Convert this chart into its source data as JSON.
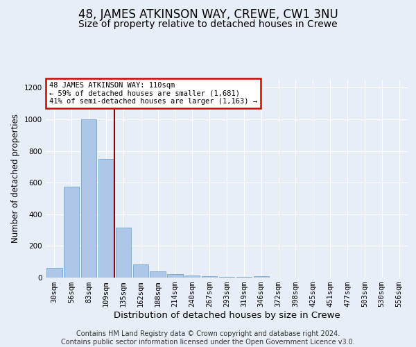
{
  "title1": "48, JAMES ATKINSON WAY, CREWE, CW1 3NU",
  "title2": "Size of property relative to detached houses in Crewe",
  "xlabel": "Distribution of detached houses by size in Crewe",
  "ylabel": "Number of detached properties",
  "bar_labels": [
    "30sqm",
    "56sqm",
    "83sqm",
    "109sqm",
    "135sqm",
    "162sqm",
    "188sqm",
    "214sqm",
    "240sqm",
    "267sqm",
    "293sqm",
    "319sqm",
    "346sqm",
    "372sqm",
    "398sqm",
    "425sqm",
    "451sqm",
    "477sqm",
    "503sqm",
    "530sqm",
    "556sqm"
  ],
  "bar_values": [
    60,
    575,
    1000,
    750,
    315,
    85,
    40,
    22,
    15,
    8,
    5,
    3,
    10,
    0,
    0,
    0,
    0,
    0,
    0,
    0,
    0
  ],
  "bar_color": "#aec6e8",
  "bar_edge_color": "#7aafd4",
  "property_line_color": "#8b0000",
  "annotation_text": "48 JAMES ATKINSON WAY: 110sqm\n← 59% of detached houses are smaller (1,681)\n41% of semi-detached houses are larger (1,163) →",
  "annotation_box_color": "#ffffff",
  "annotation_box_edge": "#cc0000",
  "ylim": [
    0,
    1250
  ],
  "yticks": [
    0,
    200,
    400,
    600,
    800,
    1000,
    1200
  ],
  "background_color": "#e8eef8",
  "footer_text": "Contains HM Land Registry data © Crown copyright and database right 2024.\nContains public sector information licensed under the Open Government Licence v3.0.",
  "title1_fontsize": 12,
  "title2_fontsize": 10,
  "xlabel_fontsize": 9.5,
  "ylabel_fontsize": 8.5,
  "tick_fontsize": 7.5,
  "footer_fontsize": 7
}
